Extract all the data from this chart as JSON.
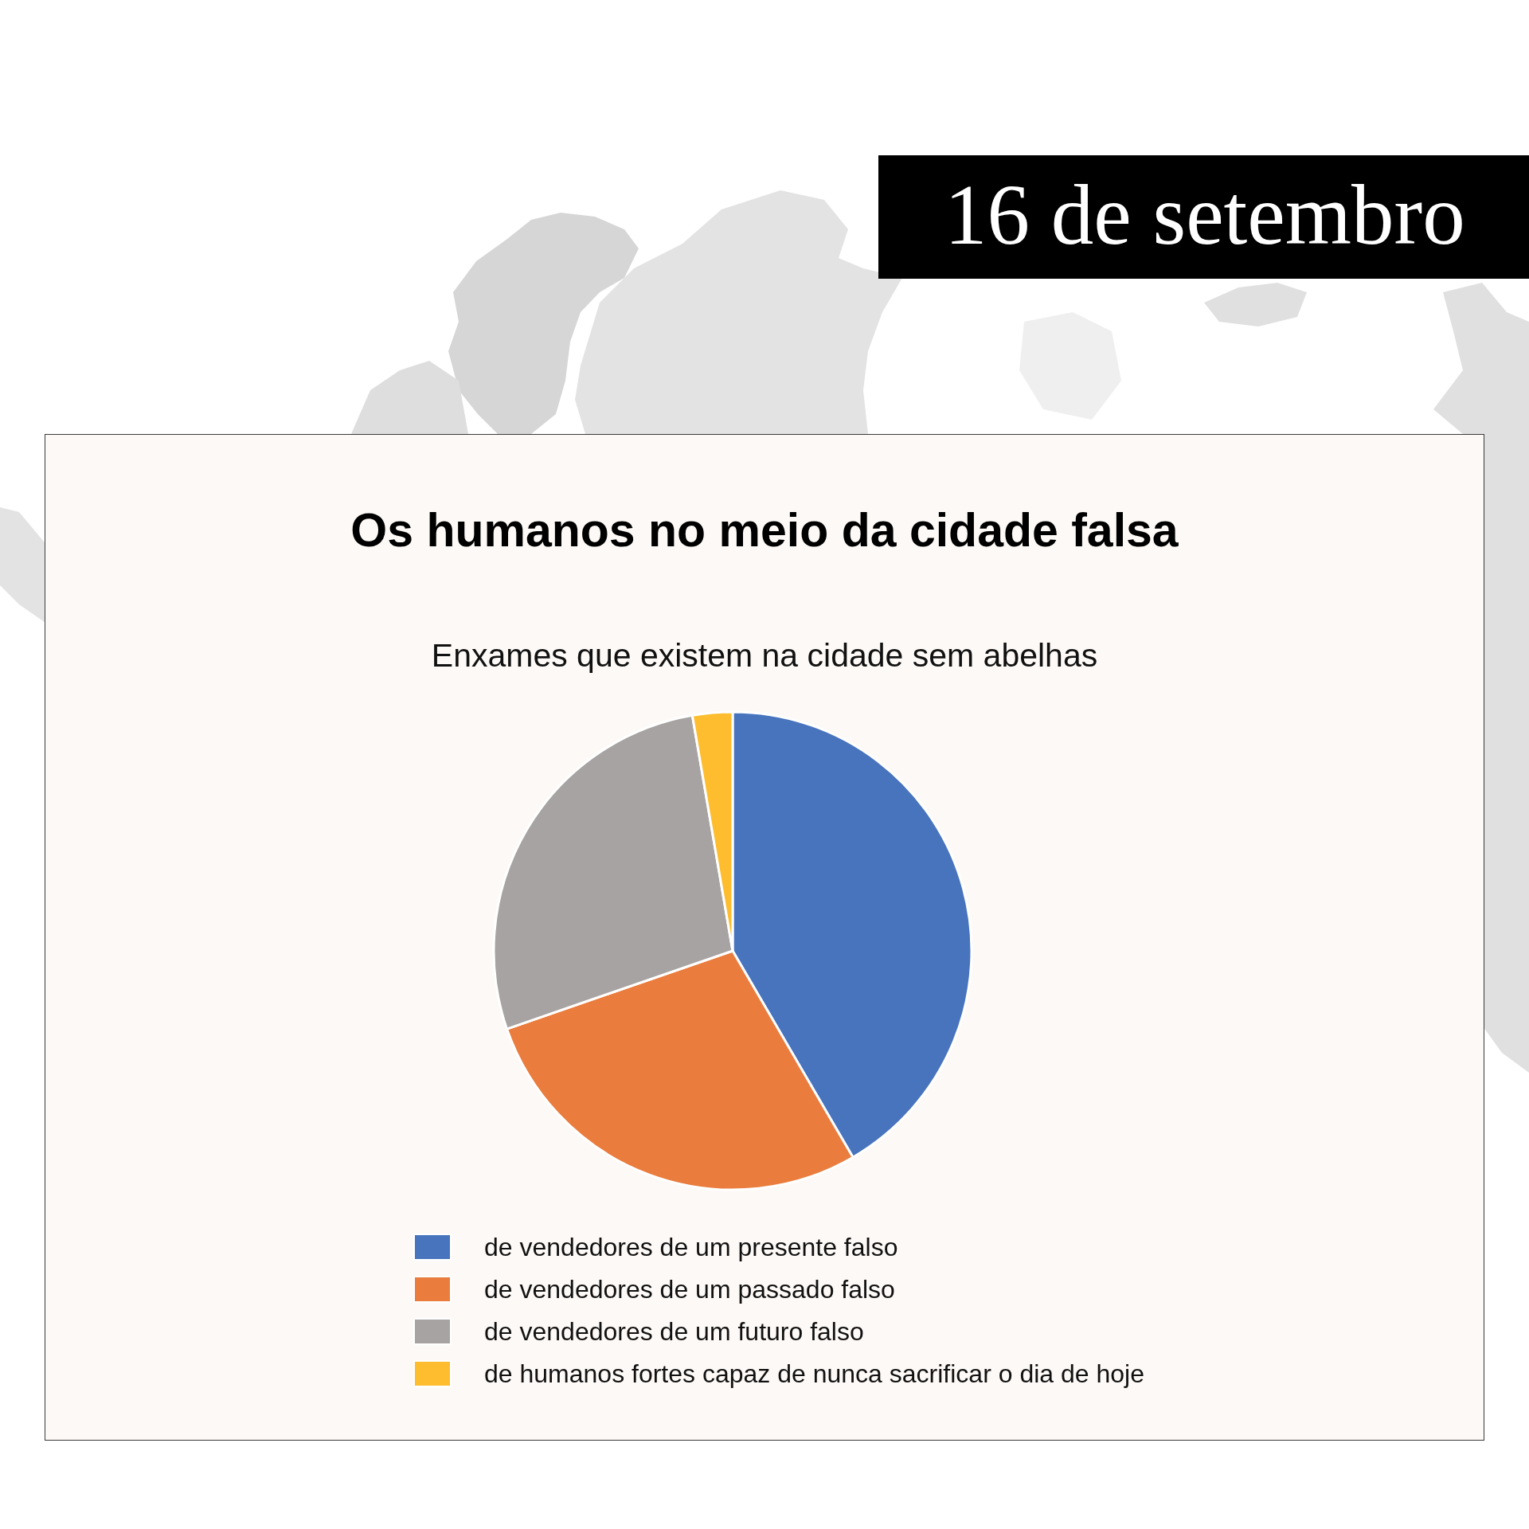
{
  "chart_data": {
    "type": "pie",
    "title": "Os humanos no meio da cidade falsa",
    "subtitle": "Enxames que existem na cidade sem abelhas",
    "annotations": [
      "16 de setembro"
    ],
    "categories": [
      "de vendedores de um presente falso",
      "de vendedores de um passado falso",
      "de vendedores de um futuro falso",
      "de humanos fortes capaz de nunca sacrificar o dia de hoje"
    ],
    "values": [
      41.6,
      28.1,
      27.6,
      2.7
    ],
    "colors": [
      "#4874be",
      "#ea7c3d",
      "#a6a3a2",
      "#fdbd2f"
    ],
    "legend": "bottom"
  }
}
